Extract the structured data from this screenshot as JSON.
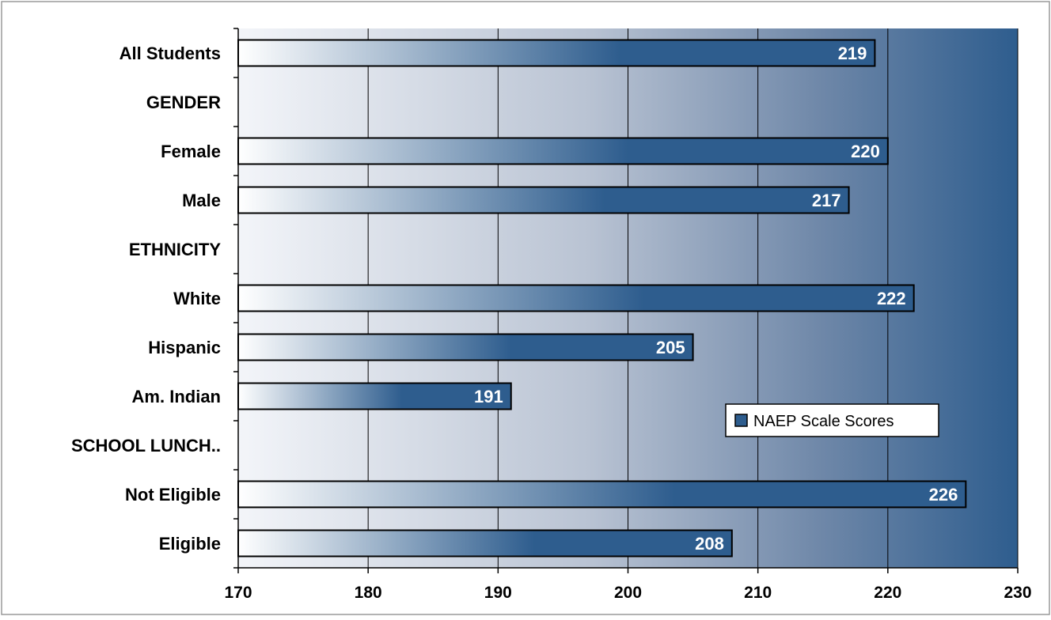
{
  "chart_data": {
    "type": "bar",
    "orientation": "horizontal",
    "categories": [
      "All Students",
      "GENDER",
      "Female",
      "Male",
      "ETHNICITY",
      "White",
      "Hispanic",
      "Am. Indian",
      "SCHOOL LUNCH..",
      "Not Eligible",
      "Eligible"
    ],
    "series": [
      {
        "name": "NAEP Scale Scores",
        "values": [
          219,
          null,
          220,
          217,
          null,
          222,
          205,
          191,
          null,
          226,
          208
        ]
      }
    ],
    "data_labels": [
      "219",
      "",
      "220",
      "217",
      "",
      "222",
      "205",
      "191",
      "",
      "226",
      "208"
    ],
    "x_ticks": [
      "170",
      "180",
      "190",
      "200",
      "210",
      "220",
      "230"
    ],
    "xlim": [
      170,
      230
    ],
    "grid": "vertical",
    "legend": "right-middle",
    "colors": {
      "bar_dark": "#2e5d8e",
      "bar_light": "#ffffff",
      "plot_bg_light": "#f2f4f8",
      "plot_bg_dark": "#2e5d8e"
    }
  }
}
